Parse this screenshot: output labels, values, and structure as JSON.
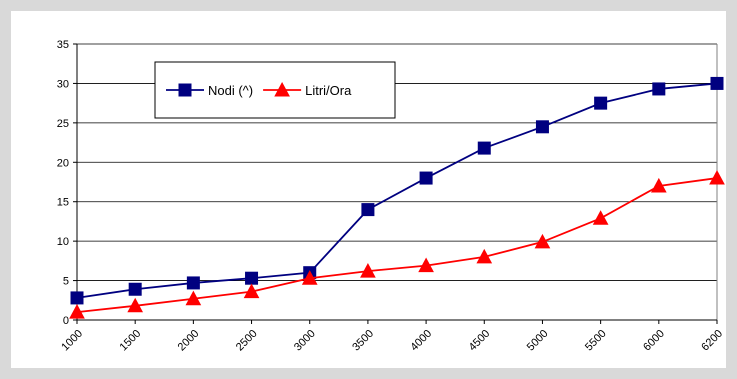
{
  "chart_data": {
    "type": "line",
    "title": "",
    "xlabel": "",
    "ylabel": "",
    "categories": [
      "1000",
      "1500",
      "2000",
      "2500",
      "3000",
      "3500",
      "4000",
      "4500",
      "5000",
      "5500",
      "6000",
      "6200"
    ],
    "ylim": [
      0,
      35
    ],
    "yticks": [
      0,
      5,
      10,
      15,
      20,
      25,
      30,
      35
    ],
    "grid": true,
    "legend_position": "top-left",
    "series": [
      {
        "name": "Nodi (^)",
        "marker": "square",
        "color": "#000080",
        "values": [
          2.8,
          3.9,
          4.7,
          5.3,
          6.0,
          14.0,
          18.0,
          21.8,
          24.5,
          27.5,
          29.3,
          30.0
        ]
      },
      {
        "name": "Litri/Ora",
        "marker": "triangle",
        "color": "#ff0000",
        "values": [
          1.0,
          1.8,
          2.7,
          3.6,
          5.3,
          6.2,
          6.9,
          8.0,
          9.9,
          12.9,
          17.0,
          18.0
        ]
      }
    ]
  }
}
